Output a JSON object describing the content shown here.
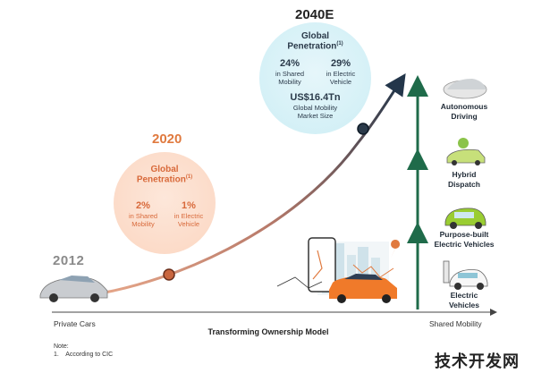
{
  "timeline": {
    "year_start": "2012",
    "year_mid": "2020",
    "year_end": "2040E"
  },
  "bubble_2020": {
    "title_line1": "Global",
    "title_line2": "Penetration",
    "note_mark": "(1)",
    "left_value": "2%",
    "left_desc_line1": "in Shared",
    "left_desc_line2": "Mobility",
    "right_value": "1%",
    "right_desc_line1": "in Electric",
    "right_desc_line2": "Vehicle"
  },
  "bubble_2040": {
    "title_line1": "Global",
    "title_line2": "Penetration",
    "note_mark": "(1)",
    "left_value": "24%",
    "left_desc_line1": "in Shared",
    "left_desc_line2": "Mobility",
    "right_value": "29%",
    "right_desc_line1": "in Electric",
    "right_desc_line2": "Vehicle",
    "market_value": "US$16.4Tn",
    "market_desc_line1": "Global Mobility",
    "market_desc_line2": "Market Size"
  },
  "features": [
    {
      "line1": "Autonomous",
      "line2": "Driving"
    },
    {
      "line1": "Hybrid",
      "line2": "Dispatch"
    },
    {
      "line1": "Purpose-built",
      "line2": "Electric Vehicles"
    },
    {
      "line1": "Electric",
      "line2": "Vehicles"
    }
  ],
  "axis": {
    "left_label": "Private Cars",
    "right_label": "Shared Mobility",
    "title": "Transforming Ownership Model"
  },
  "note": {
    "heading": "Note:",
    "item": "1.    According to CIC"
  },
  "watermark": "技术开发网",
  "colors": {
    "orange": "#d8693a",
    "dark_blue": "#2b3a4a",
    "green_arrow": "#1f6b4a",
    "bubble_orange": "#fbd6c1",
    "bubble_blue": "#cdeef5"
  }
}
